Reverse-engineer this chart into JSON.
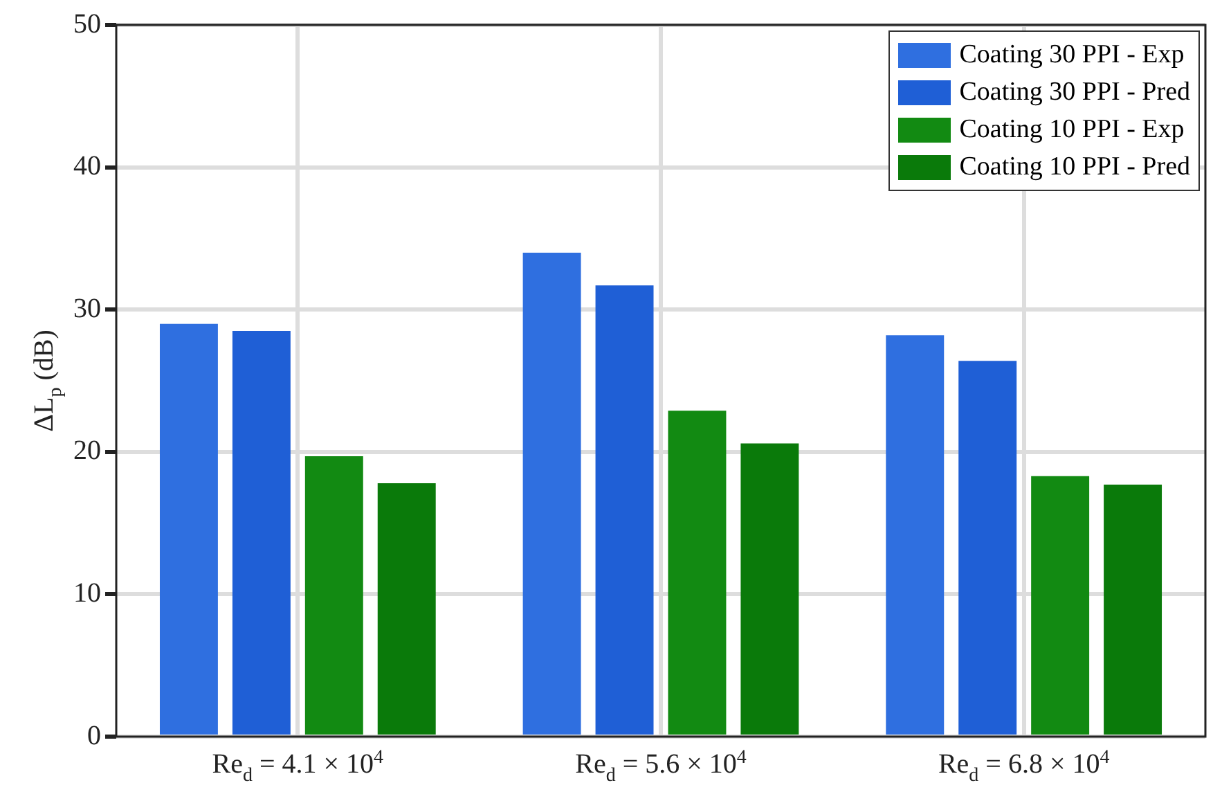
{
  "chart_data": {
    "type": "bar",
    "ylabel": "ΔL$_{p}$ (dB)",
    "categories": [
      "Re$_{d}$ = 4.1 × 10$^{4}$",
      "Re$_{d}$ = 5.6 × 10$^{4}$",
      "Re$_{d}$ = 6.8 × 10$^{4}$"
    ],
    "series": [
      {
        "name": "Coating 30 PPI - Exp",
        "color": "#2f6fe0",
        "values": [
          29.0,
          34.0,
          28.2
        ]
      },
      {
        "name": "Coating 30 PPI - Pred",
        "color": "#1f5fd6",
        "values": [
          28.5,
          31.7,
          26.4
        ]
      },
      {
        "name": "Coating 10 PPI - Exp",
        "color": "#128a12",
        "values": [
          19.7,
          22.9,
          18.3
        ]
      },
      {
        "name": "Coating 10 PPI - Pred",
        "color": "#0a7a0a",
        "values": [
          17.8,
          20.6,
          17.7
        ]
      }
    ],
    "ylim": [
      0,
      50
    ],
    "yticks": [
      0,
      10,
      20,
      30,
      40,
      50
    ],
    "grid": true,
    "legend": "top right"
  }
}
